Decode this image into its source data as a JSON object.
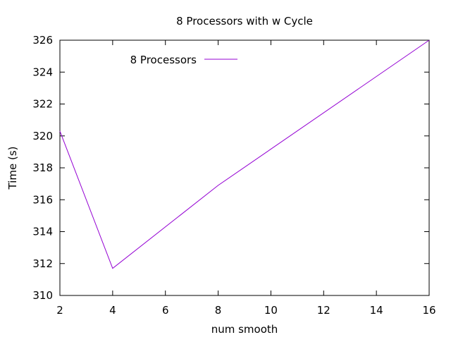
{
  "chart_data": {
    "type": "line",
    "title": "8 Processors with w Cycle",
    "xlabel": "num smooth",
    "ylabel": "Time (s)",
    "xlim": [
      2,
      16
    ],
    "ylim": [
      310,
      326
    ],
    "xticks": [
      2,
      4,
      6,
      8,
      10,
      12,
      14,
      16
    ],
    "yticks": [
      310,
      312,
      314,
      316,
      318,
      320,
      322,
      324,
      326
    ],
    "grid": false,
    "legend_position": "top-left",
    "series": [
      {
        "name": "8 Processors",
        "color": "#9400d3",
        "x": [
          2,
          4,
          8,
          16
        ],
        "y": [
          320.3,
          311.7,
          316.9,
          326.0
        ]
      }
    ]
  }
}
